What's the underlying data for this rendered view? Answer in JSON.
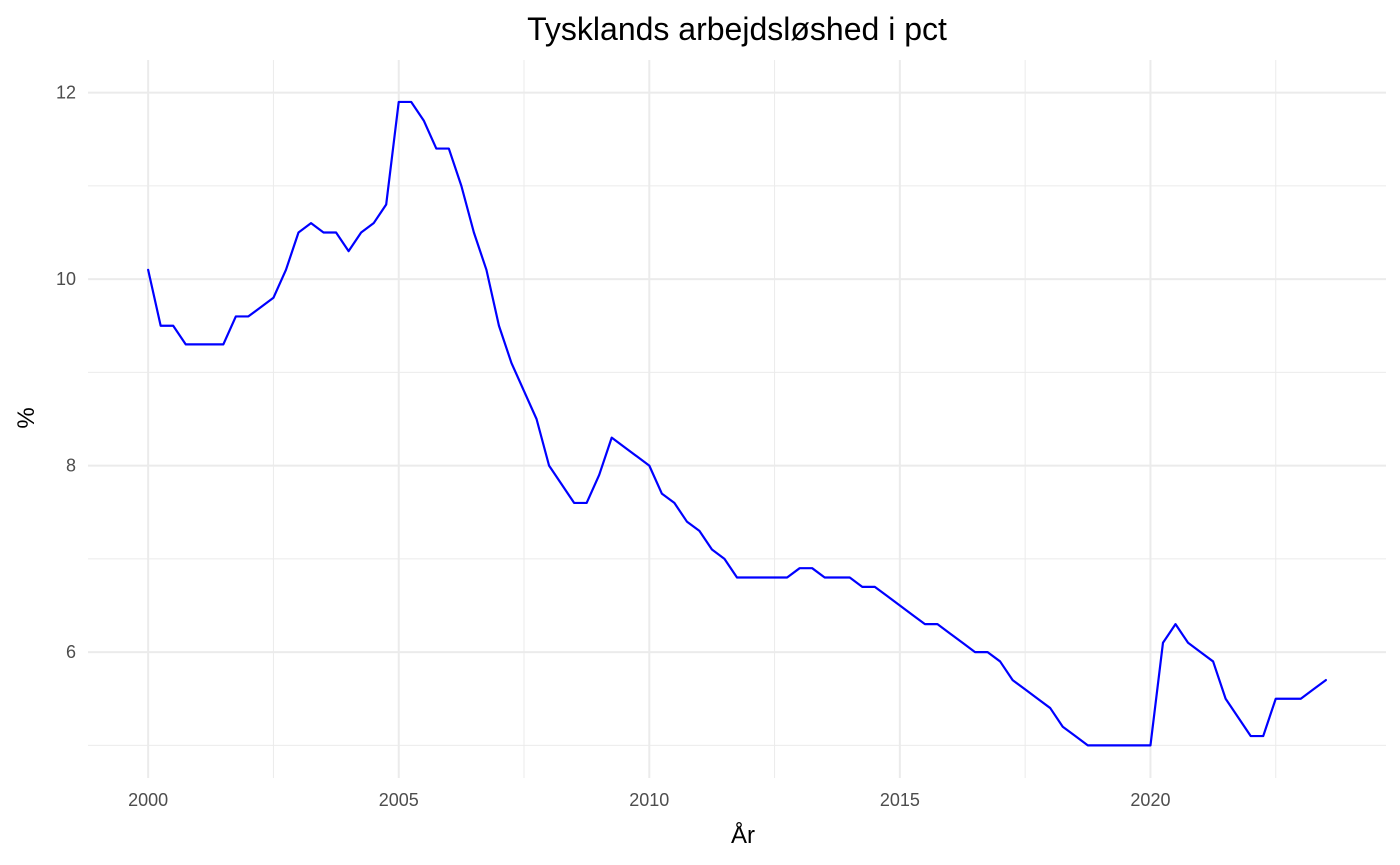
{
  "chart_data": {
    "type": "line",
    "title": "Tysklands arbejdsløshed i pct",
    "xlabel": "År",
    "ylabel": "%",
    "xlim": [
      1998.8,
      2024.7
    ],
    "ylim": [
      4.65,
      12.35
    ],
    "x_ticks": [
      2000,
      2005,
      2010,
      2015,
      2020
    ],
    "x_tick_labels": [
      "2000",
      "2005",
      "2010",
      "2015",
      "2020"
    ],
    "x_minor_ticks": [
      2002.5,
      2007.5,
      2012.5,
      2017.5,
      2022.5
    ],
    "y_ticks": [
      6,
      8,
      10,
      12
    ],
    "y_tick_labels": [
      "6",
      "8",
      "10",
      "12"
    ],
    "y_minor_ticks": [
      5,
      7,
      9,
      11
    ],
    "grid": true,
    "legend": "none",
    "series": [
      {
        "color": "#0000ff",
        "points": [
          [
            2000.0,
            10.1
          ],
          [
            2000.25,
            9.5
          ],
          [
            2000.5,
            9.5
          ],
          [
            2000.75,
            9.3
          ],
          [
            2001.0,
            9.3
          ],
          [
            2001.25,
            9.3
          ],
          [
            2001.5,
            9.3
          ],
          [
            2001.75,
            9.6
          ],
          [
            2002.0,
            9.6
          ],
          [
            2002.25,
            9.7
          ],
          [
            2002.5,
            9.8
          ],
          [
            2002.75,
            10.1
          ],
          [
            2003.0,
            10.5
          ],
          [
            2003.25,
            10.6
          ],
          [
            2003.5,
            10.5
          ],
          [
            2003.75,
            10.5
          ],
          [
            2004.0,
            10.3
          ],
          [
            2004.25,
            10.5
          ],
          [
            2004.5,
            10.6
          ],
          [
            2004.75,
            10.8
          ],
          [
            2005.0,
            11.9
          ],
          [
            2005.25,
            11.9
          ],
          [
            2005.5,
            11.7
          ],
          [
            2005.75,
            11.4
          ],
          [
            2006.0,
            11.4
          ],
          [
            2006.25,
            11.0
          ],
          [
            2006.5,
            10.5
          ],
          [
            2006.75,
            10.1
          ],
          [
            2007.0,
            9.5
          ],
          [
            2007.25,
            9.1
          ],
          [
            2007.5,
            8.8
          ],
          [
            2007.75,
            8.5
          ],
          [
            2008.0,
            8.0
          ],
          [
            2008.25,
            7.8
          ],
          [
            2008.5,
            7.6
          ],
          [
            2008.75,
            7.6
          ],
          [
            2009.0,
            7.9
          ],
          [
            2009.25,
            8.3
          ],
          [
            2009.5,
            8.2
          ],
          [
            2009.75,
            8.1
          ],
          [
            2010.0,
            8.0
          ],
          [
            2010.25,
            7.7
          ],
          [
            2010.5,
            7.6
          ],
          [
            2010.75,
            7.4
          ],
          [
            2011.0,
            7.3
          ],
          [
            2011.25,
            7.1
          ],
          [
            2011.5,
            7.0
          ],
          [
            2011.75,
            6.8
          ],
          [
            2012.0,
            6.8
          ],
          [
            2012.25,
            6.8
          ],
          [
            2012.5,
            6.8
          ],
          [
            2012.75,
            6.8
          ],
          [
            2013.0,
            6.9
          ],
          [
            2013.25,
            6.9
          ],
          [
            2013.5,
            6.8
          ],
          [
            2013.75,
            6.8
          ],
          [
            2014.0,
            6.8
          ],
          [
            2014.25,
            6.7
          ],
          [
            2014.5,
            6.7
          ],
          [
            2014.75,
            6.6
          ],
          [
            2015.0,
            6.5
          ],
          [
            2015.25,
            6.4
          ],
          [
            2015.5,
            6.3
          ],
          [
            2015.75,
            6.3
          ],
          [
            2016.0,
            6.2
          ],
          [
            2016.25,
            6.1
          ],
          [
            2016.5,
            6.0
          ],
          [
            2016.75,
            6.0
          ],
          [
            2017.0,
            5.9
          ],
          [
            2017.25,
            5.7
          ],
          [
            2017.5,
            5.6
          ],
          [
            2017.75,
            5.5
          ],
          [
            2018.0,
            5.4
          ],
          [
            2018.25,
            5.2
          ],
          [
            2018.5,
            5.1
          ],
          [
            2018.75,
            5.0
          ],
          [
            2019.0,
            5.0
          ],
          [
            2019.25,
            5.0
          ],
          [
            2019.5,
            5.0
          ],
          [
            2019.75,
            5.0
          ],
          [
            2020.0,
            5.0
          ],
          [
            2020.25,
            6.1
          ],
          [
            2020.5,
            6.3
          ],
          [
            2020.75,
            6.1
          ],
          [
            2021.0,
            6.0
          ],
          [
            2021.25,
            5.9
          ],
          [
            2021.5,
            5.5
          ],
          [
            2021.75,
            5.3
          ],
          [
            2022.0,
            5.1
          ],
          [
            2022.25,
            5.1
          ],
          [
            2022.5,
            5.5
          ],
          [
            2022.75,
            5.5
          ],
          [
            2023.0,
            5.5
          ],
          [
            2023.25,
            5.6
          ],
          [
            2023.5,
            5.7
          ]
        ]
      }
    ]
  }
}
